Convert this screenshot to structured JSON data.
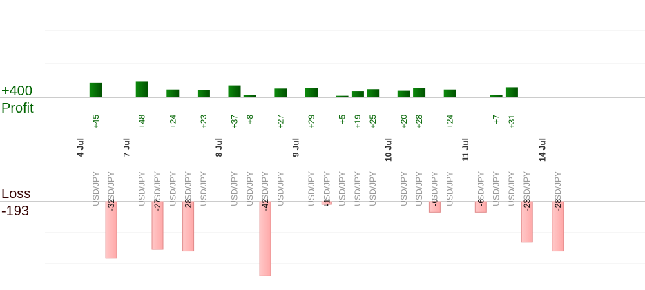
{
  "summary": {
    "profit_total": "+400",
    "profit_label": "Profit",
    "loss_label": "Loss",
    "loss_total": "-193"
  },
  "colors": {
    "profit": "#006400",
    "profit_light": "#0d8a0d",
    "loss_fill": "#ffb6b6",
    "loss_stroke": "#e08a8a",
    "axis": "#999999",
    "grid": "#eeeeee"
  },
  "chart_data": {
    "type": "bar",
    "profit_axis_max": 300,
    "loss_axis_min": -45,
    "trades": [
      {
        "date": "4 Jul"
      },
      {
        "pair": "USD/JPY",
        "value": 45,
        "label": "+45"
      },
      {
        "pair": "USD/JPY",
        "value": -32,
        "label": "-32"
      },
      {
        "date": "7 Jul"
      },
      {
        "pair": "USD/JPY",
        "value": 48,
        "label": "+48"
      },
      {
        "pair": "USD/JPY",
        "value": -27,
        "label": "-27"
      },
      {
        "pair": "USD/JPY",
        "value": 24,
        "label": "+24"
      },
      {
        "pair": "USD/JPY",
        "value": -28,
        "label": "-28"
      },
      {
        "pair": "USD/JPY",
        "value": 23,
        "label": "+23"
      },
      {
        "date": "8 Jul"
      },
      {
        "pair": "USD/JPY",
        "value": 37,
        "label": "+37"
      },
      {
        "pair": "USD/JPY",
        "value": 8,
        "label": "+8"
      },
      {
        "pair": "USD/JPY",
        "value": -42,
        "label": "-42"
      },
      {
        "pair": "USD/JPY",
        "value": 27,
        "label": "+27"
      },
      {
        "date": "9 Jul"
      },
      {
        "pair": "USD/JPY",
        "value": 29,
        "label": "+29"
      },
      {
        "pair": "USD/JPY",
        "value": -1,
        "label": "-1"
      },
      {
        "pair": "USD/JPY",
        "value": 5,
        "label": "+5"
      },
      {
        "pair": "USD/JPY",
        "value": 19,
        "label": "+19"
      },
      {
        "pair": "USD/JPY",
        "value": 25,
        "label": "+25"
      },
      {
        "date": "10 Jul"
      },
      {
        "pair": "USD/JPY",
        "value": 20,
        "label": "+20"
      },
      {
        "pair": "USD/JPY",
        "value": 28,
        "label": "+28"
      },
      {
        "pair": "USD/JPY",
        "value": -6,
        "label": "-6"
      },
      {
        "pair": "USD/JPY",
        "value": 24,
        "label": "+24"
      },
      {
        "date": "11 Jul"
      },
      {
        "pair": "USD/JPY",
        "value": -6,
        "label": "-6"
      },
      {
        "pair": "USD/JPY",
        "value": 7,
        "label": "+7"
      },
      {
        "pair": "USD/JPY",
        "value": 31,
        "label": "+31"
      },
      {
        "pair": "USD/JPY",
        "value": -23,
        "label": "-23"
      },
      {
        "date": "14 Jul"
      },
      {
        "pair": "USD/JPY",
        "value": -28,
        "label": "-28"
      }
    ]
  }
}
